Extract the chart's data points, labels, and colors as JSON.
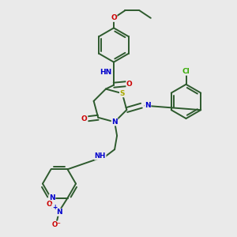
{
  "bg_color": "#eaeaea",
  "bond_color": "#2d5a2d",
  "bond_width": 1.4,
  "atom_colors": {
    "N": "#0000cc",
    "O": "#cc0000",
    "S": "#aaaa00",
    "Cl": "#33aa00",
    "C": "#2d5a2d",
    "H": "#555555"
  },
  "figsize": [
    3.0,
    3.0
  ],
  "dpi": 100,
  "xlim": [
    0,
    10
  ],
  "ylim": [
    0,
    10
  ]
}
